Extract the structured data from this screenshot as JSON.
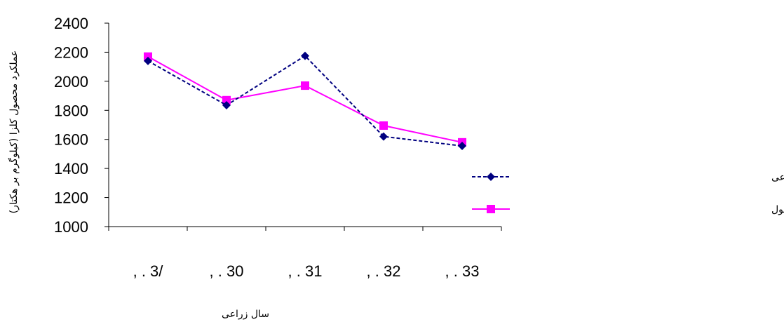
{
  "chart_data": {
    "type": "line",
    "xlabel": "سال زراعی",
    "ylabel": "عملکرد محصول کلزا (کیلوگرم بر هکتار)",
    "categories": [
      ", . 3/",
      ", . 30",
      ", . 31",
      ", . 32",
      ", . 33"
    ],
    "ylim": [
      1000,
      2400
    ],
    "yticks": [
      1000,
      1200,
      1400,
      1600,
      1800,
      2000,
      2200,
      2400
    ],
    "grid": false,
    "legend_position": "right",
    "series": [
      {
        "name": "عملکرد پیش‌بینی شده توسط شبکه عصبی مصنوعی",
        "values": [
          2140,
          1835,
          2175,
          1620,
          1555
        ],
        "color": "#000080",
        "line_style": "dashed",
        "marker": "diamond"
      },
      {
        "name": "عملکرد واقعی محصول",
        "values": [
          2170,
          1870,
          1970,
          1695,
          1580
        ],
        "color": "#ff00ff",
        "line_style": "solid",
        "marker": "square"
      }
    ]
  }
}
